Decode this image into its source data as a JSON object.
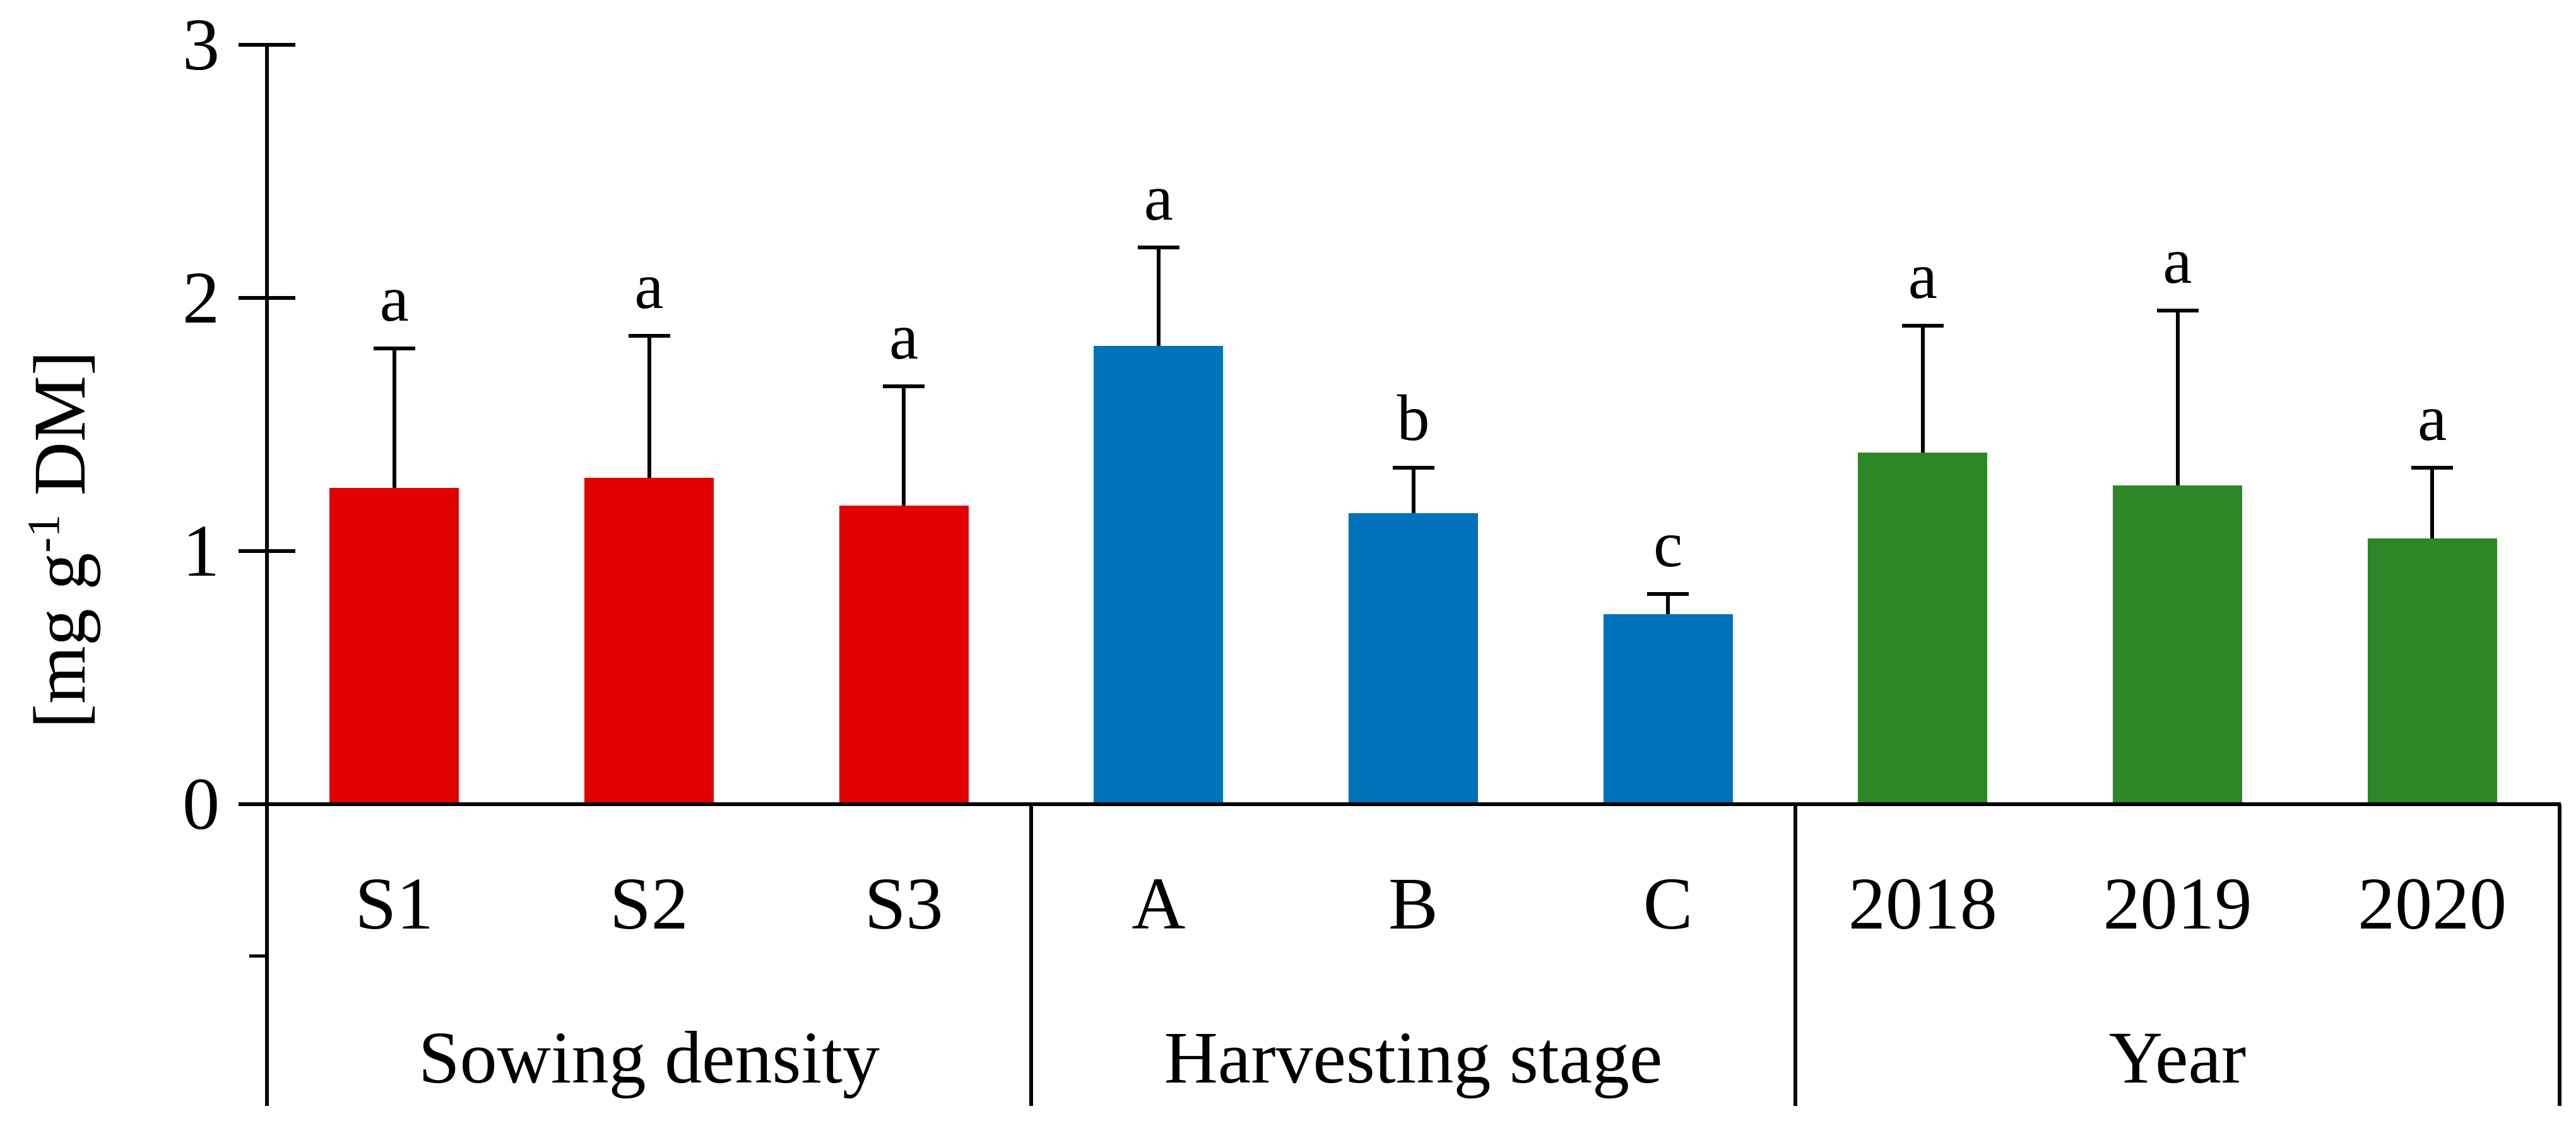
{
  "ui": {
    "y_label_prefix": "[mg g",
    "y_label_sup": "-1",
    "y_label_suffix": " DM]"
  },
  "chart_data": {
    "type": "bar",
    "title": "",
    "ylabel": "[mg g-1 DM]",
    "xlabel": "",
    "ylim": [
      0,
      3
    ],
    "y_ticks": [
      "0",
      "1",
      "2",
      "3"
    ],
    "grid": false,
    "legend_position": "none",
    "error_direction": "plus",
    "groups": [
      {
        "label": "Sowing density",
        "color": "#e00000",
        "categories": [
          "S1",
          "S2",
          "S3"
        ],
        "values": [
          1.25,
          1.29,
          1.18
        ],
        "sd": [
          0.55,
          0.56,
          0.47
        ],
        "letters": [
          "a",
          "a",
          "a"
        ]
      },
      {
        "label": "Harvesting stage",
        "color": "#0072bc",
        "categories": [
          "A",
          "B",
          "C"
        ],
        "values": [
          1.81,
          1.15,
          0.75
        ],
        "sd": [
          0.39,
          0.18,
          0.08
        ],
        "letters": [
          "a",
          "b",
          "c"
        ]
      },
      {
        "label": "Year",
        "color": "#2e8727",
        "categories": [
          "2018",
          "2019",
          "2020"
        ],
        "values": [
          1.39,
          1.26,
          1.05
        ],
        "sd": [
          0.5,
          0.69,
          0.28
        ],
        "letters": [
          "a",
          "a",
          "a"
        ]
      }
    ]
  }
}
